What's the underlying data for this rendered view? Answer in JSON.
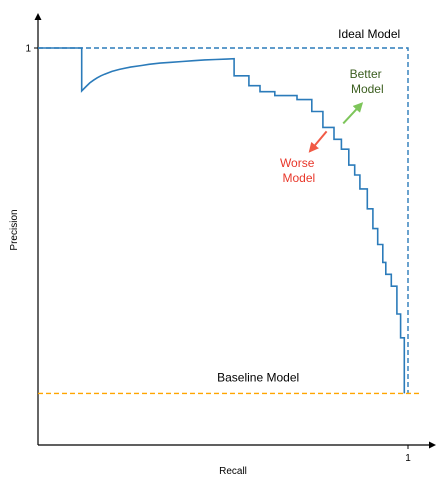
{
  "chart_data": {
    "type": "line",
    "title": "",
    "xlabel": "Recall",
    "ylabel": "Precision",
    "xlim": [
      0,
      1
    ],
    "ylim": [
      0,
      1
    ],
    "x_ticks": [
      {
        "value": 1,
        "label": "1"
      }
    ],
    "y_ticks": [
      {
        "value": 1,
        "label": "1"
      }
    ],
    "grid": false,
    "colors": {
      "pr_curve": "#2b7bba",
      "ideal": "#2b7bba",
      "baseline": "#ffa500",
      "better": "#7dc55a",
      "worse": "#f15a45",
      "better_text": "#3b5e1f",
      "worse_text": "#e8372a"
    },
    "series": [
      {
        "kind": "pr_curve",
        "x": [
          0,
          0.118,
          0.118,
          0.13,
          0.14,
          0.15,
          0.16,
          0.17,
          0.18,
          0.2,
          0.22,
          0.25,
          0.28,
          0.3,
          0.33,
          0.36,
          0.39,
          0.42,
          0.45,
          0.48,
          0.51,
          0.53,
          0.53,
          0.57,
          0.57,
          0.6,
          0.6,
          0.64,
          0.64,
          0.7,
          0.7,
          0.74,
          0.74,
          0.77,
          0.77,
          0.8,
          0.8,
          0.82,
          0.82,
          0.84,
          0.84,
          0.856,
          0.856,
          0.87,
          0.87,
          0.89,
          0.89,
          0.905,
          0.905,
          0.918,
          0.918,
          0.932,
          0.932,
          0.94,
          0.94,
          0.955,
          0.955,
          0.97,
          0.97,
          0.98,
          0.98,
          0.99,
          0.99
        ],
        "y": [
          1,
          1,
          0.892,
          0.903,
          0.912,
          0.919,
          0.925,
          0.93,
          0.934,
          0.941,
          0.946,
          0.952,
          0.956,
          0.959,
          0.962,
          0.964,
          0.966,
          0.968,
          0.97,
          0.971,
          0.972,
          0.973,
          0.93,
          0.93,
          0.905,
          0.905,
          0.89,
          0.89,
          0.88,
          0.88,
          0.87,
          0.87,
          0.84,
          0.84,
          0.8,
          0.8,
          0.77,
          0.77,
          0.745,
          0.745,
          0.705,
          0.705,
          0.68,
          0.68,
          0.645,
          0.645,
          0.595,
          0.595,
          0.545,
          0.545,
          0.505,
          0.505,
          0.46,
          0.46,
          0.43,
          0.43,
          0.4,
          0.4,
          0.33,
          0.33,
          0.27,
          0.27,
          0.13
        ]
      },
      {
        "kind": "ideal",
        "x": [
          0,
          1,
          1
        ],
        "y": [
          1,
          1,
          0.13
        ]
      },
      {
        "kind": "baseline",
        "x": [
          0,
          1.03
        ],
        "y": [
          0.13,
          0.13
        ]
      }
    ],
    "annotations": {
      "ideal": {
        "text": "Ideal Model",
        "x": 0.895,
        "y": 1.025
      },
      "baseline": {
        "text": "Baseline Model",
        "x": 0.595,
        "y": 0.16
      },
      "better": {
        "lines": [
          "Better",
          "Model"
        ],
        "x": 0.89,
        "y": 0.925
      },
      "worse": {
        "lines": [
          "Worse",
          "Model"
        ],
        "x": 0.705,
        "y": 0.7
      },
      "better_arrow": {
        "from": [
          0.825,
          0.81
        ],
        "to": [
          0.875,
          0.86
        ]
      },
      "worse_arrow": {
        "from": [
          0.78,
          0.79
        ],
        "to": [
          0.735,
          0.74
        ]
      }
    }
  }
}
